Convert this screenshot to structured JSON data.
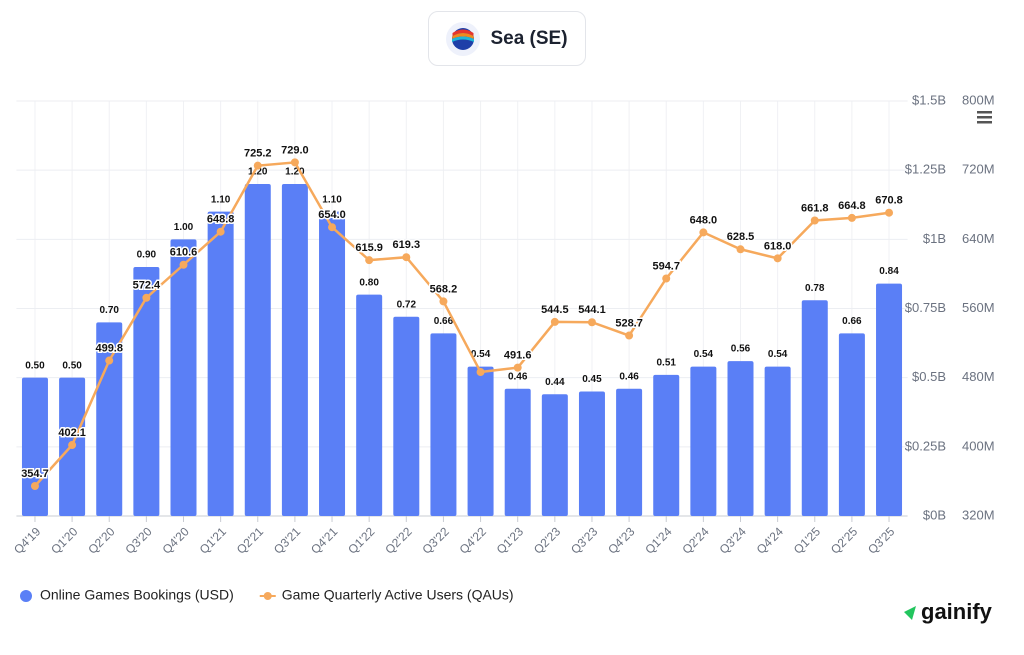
{
  "chart_data": {
    "type": "bar-line",
    "title": "Sea (SE)",
    "brand": "gainify",
    "categories": [
      "Q4'19",
      "Q1'20",
      "Q2'20",
      "Q3'20",
      "Q4'20",
      "Q1'21",
      "Q2'21",
      "Q3'21",
      "Q4'21",
      "Q1'22",
      "Q2'22",
      "Q3'22",
      "Q4'22",
      "Q1'23",
      "Q2'23",
      "Q3'23",
      "Q4'23",
      "Q1'24",
      "Q2'24",
      "Q3'24",
      "Q4'24",
      "Q1'25",
      "Q2'25",
      "Q3'25"
    ],
    "series": [
      {
        "name": "Online Games Bookings (USD)",
        "type": "bar",
        "color": "#5a7ff6",
        "values": [
          0.5,
          0.5,
          0.7,
          0.9,
          1.0,
          1.1,
          1.2,
          1.2,
          1.1,
          0.8,
          0.72,
          0.66,
          0.54,
          0.46,
          0.44,
          0.45,
          0.46,
          0.51,
          0.54,
          0.56,
          0.54,
          0.78,
          0.66,
          0.84
        ],
        "value_labels": [
          "0.50",
          "0.50",
          "0.70",
          "0.90",
          "1.00",
          "1.10",
          "1.20",
          "1.20",
          "1.10",
          "0.80",
          "0.72",
          "0.66",
          "0.54",
          "0.46",
          "0.44",
          "0.45",
          "0.46",
          "0.51",
          "0.54",
          "0.56",
          "0.54",
          "0.78",
          "0.66",
          "0.84"
        ]
      },
      {
        "name": "Game Quarterly Active Users (QAUs)",
        "type": "line",
        "axis": "y2",
        "color": "#f6a95c",
        "values": [
          354.7,
          402.1,
          499.8,
          572.4,
          610.6,
          648.8,
          725.2,
          729.0,
          654.0,
          615.9,
          619.3,
          568.2,
          486.5,
          491.6,
          544.5,
          544.1,
          528.7,
          594.7,
          648.0,
          628.5,
          618.0,
          661.8,
          664.8,
          670.8
        ],
        "value_labels": [
          "354.7",
          "402.1",
          "499.8",
          "572.4",
          "610.6",
          "648.8",
          "725.2",
          "729.0",
          "654.0",
          "615.9",
          "619.3",
          "568.2",
          null,
          "491.6",
          "544.5",
          "544.1",
          "528.7",
          "594.7",
          "648.0",
          "628.5",
          "618.0",
          "661.8",
          "664.8",
          "670.8"
        ]
      }
    ],
    "ylim": [
      0,
      1.5
    ],
    "yticks": [
      {
        "value": 0,
        "label": "$0B"
      },
      {
        "value": 0.25,
        "label": "$0.25B"
      },
      {
        "value": 0.5,
        "label": "$0.5B"
      },
      {
        "value": 0.75,
        "label": "$0.75B"
      },
      {
        "value": 1,
        "label": "$1B"
      },
      {
        "value": 1.25,
        "label": "$1.25B"
      },
      {
        "value": 1.5,
        "label": "$1.5B"
      }
    ],
    "y2lim": [
      320,
      800
    ],
    "y2ticks": [
      {
        "value": 320,
        "label": "320M"
      },
      {
        "value": 400,
        "label": "400M"
      },
      {
        "value": 480,
        "label": "480M"
      },
      {
        "value": 560,
        "label": "560M"
      },
      {
        "value": 640,
        "label": "640M"
      },
      {
        "value": 720,
        "label": "720M"
      },
      {
        "value": 800,
        "label": "800M"
      }
    ],
    "grid": true,
    "legend": "bottom-left"
  }
}
